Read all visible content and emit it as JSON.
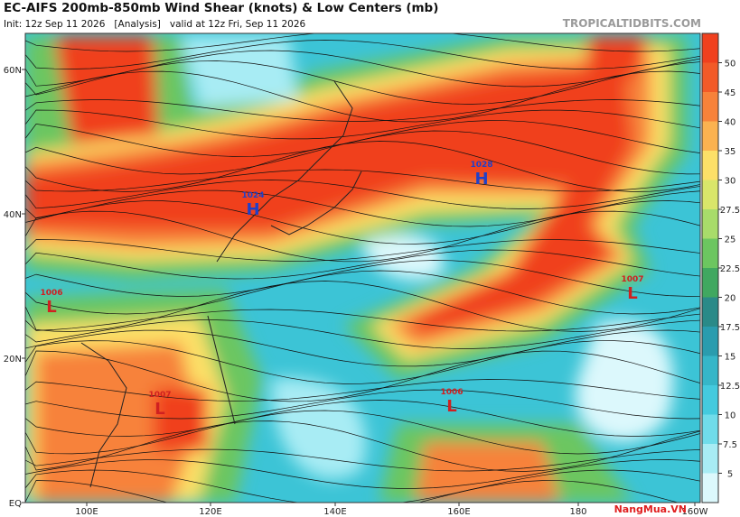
{
  "header": {
    "title": "EC-AIFS 200mb-850mb Wind Shear (knots) & Low Centers (mb)",
    "subtitle": "Init: 12z Sep 11 2026   [Analysis]   valid at 12z Fri, Sep 11 2026",
    "site": "TROPICALTIDBITS.COM"
  },
  "map": {
    "lat_labels": [
      "60N",
      "40N",
      "20N",
      "EQ"
    ],
    "lon_labels": [
      "100E",
      "120E",
      "140E",
      "160E",
      "180",
      "160W"
    ],
    "centers": [
      {
        "symbol": "H",
        "pressure": "1024"
      },
      {
        "symbol": "H",
        "pressure": "1028"
      },
      {
        "symbol": "L",
        "pressure": "1006"
      },
      {
        "symbol": "L",
        "pressure": "1007"
      },
      {
        "symbol": "L",
        "pressure": "1006"
      },
      {
        "symbol": "L",
        "pressure": "1007"
      }
    ]
  },
  "colorbar": {
    "ticks": [
      50,
      45,
      40,
      35,
      30,
      27.5,
      25,
      22.5,
      20,
      17.5,
      15,
      12.5,
      10,
      7.5,
      5
    ],
    "colors": [
      "#f0401e",
      "#f25a28",
      "#f7823a",
      "#fbb250",
      "#fde068",
      "#d9e66a",
      "#a8dc6a",
      "#6cc660",
      "#40a860",
      "#2a8a88",
      "#2a9cae",
      "#36b6c8",
      "#44cade",
      "#70dcea",
      "#a8ecf4",
      "#dcf8fc"
    ]
  },
  "watermark": "NangMua.VN"
}
